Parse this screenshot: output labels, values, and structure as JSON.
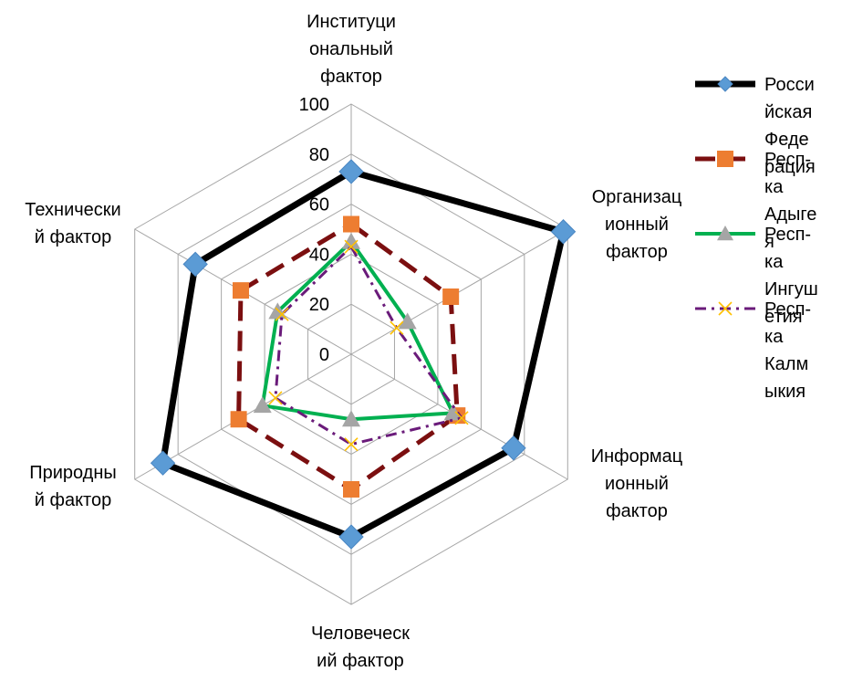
{
  "chart_data": {
    "type": "radar",
    "axes": [
      [
        "Институци",
        "ональный",
        "фактор"
      ],
      [
        "Организац",
        "ионный",
        "фактор"
      ],
      [
        "Информац",
        "ионный",
        "фактор"
      ],
      [
        "Человеческ",
        "ий фактор"
      ],
      [
        "Природны",
        "й фактор"
      ],
      [
        "Технически",
        "й фактор"
      ]
    ],
    "rlim": [
      0,
      100
    ],
    "ticks": [
      "0",
      "20",
      "40",
      "60",
      "80",
      "100"
    ],
    "grid": true,
    "legend_position": "right",
    "series": [
      {
        "name": [
          "Росси",
          "йская",
          "Феде",
          "рация"
        ],
        "values": [
          73,
          98,
          75,
          73,
          87,
          72
        ],
        "line_color": "#000000",
        "marker_color": "#5b9bd5",
        "marker": "diamond",
        "dash": "solid"
      },
      {
        "name": [
          "Респ-",
          "ка",
          "Адыге",
          "я"
        ],
        "values": [
          52,
          46,
          49,
          54,
          52,
          51
        ],
        "line_color": "#7b0f10",
        "marker_color": "#ed7d31",
        "marker": "square",
        "dash": "dashed"
      },
      {
        "name": [
          "Респ-",
          "ка",
          "Ингуш",
          "етия"
        ],
        "values": [
          45,
          26,
          47,
          26,
          41,
          34
        ],
        "line_color": "#00b050",
        "marker_color": "#a5a5a5",
        "marker": "triangle",
        "dash": "solid"
      },
      {
        "name": [
          "Респ-",
          "ка",
          "Калм",
          "ыкия"
        ],
        "values": [
          43,
          21,
          51,
          36,
          35,
          32
        ],
        "line_color": "#6a1b7a",
        "marker_color": "#ffc000",
        "marker": "x",
        "dash": "dashdot"
      }
    ]
  }
}
